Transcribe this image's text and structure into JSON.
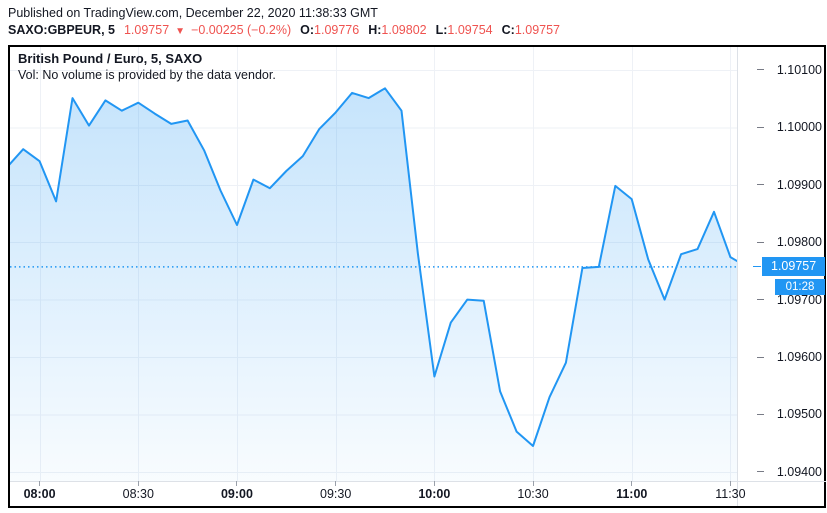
{
  "header": {
    "published": "Published on TradingView.com, December 22, 2020 11:38:33 GMT",
    "symbol": "SAXO:GBPEUR, 5",
    "last_price": "1.09757",
    "direction_icon": "▼",
    "change": "−0.00225 (−0.2%)",
    "ohlc": [
      {
        "label": "O:",
        "value": "1.09776"
      },
      {
        "label": "H:",
        "value": "1.09802"
      },
      {
        "label": "L:",
        "value": "1.09754"
      },
      {
        "label": "C:",
        "value": "1.09757"
      }
    ]
  },
  "legend": {
    "title": "British Pound / Euro, 5, SAXO",
    "volume_note": "Vol: No volume is provided by the data vendor."
  },
  "price_scale": {
    "labels": [
      "1.10100",
      "1.10000",
      "1.09900",
      "1.09800",
      "1.09700",
      "1.09600",
      "1.09500",
      "1.09400"
    ],
    "current": "1.09757",
    "countdown": "01:28"
  },
  "time_scale": {
    "ticks": [
      {
        "label": "08:00",
        "bold": true
      },
      {
        "label": "08:30",
        "bold": false
      },
      {
        "label": "09:00",
        "bold": true
      },
      {
        "label": "09:30",
        "bold": false
      },
      {
        "label": "10:00",
        "bold": true
      },
      {
        "label": "10:30",
        "bold": false
      },
      {
        "label": "11:00",
        "bold": true
      },
      {
        "label": "11:30",
        "bold": false
      }
    ]
  },
  "colors": {
    "line": "#2196f3",
    "area_top": "rgba(33,150,243,0.26)",
    "area_bottom": "rgba(33,150,243,0.03)",
    "grid": "#eef1f6",
    "text": "#131722",
    "red": "#ef5350",
    "label_bg": "#2196f3"
  },
  "chart_data": {
    "type": "area",
    "title": "British Pound / Euro, 5, SAXO",
    "symbol": "SAXO:GBPEUR",
    "interval_minutes": 5,
    "x": [
      "07:50",
      "07:55",
      "08:00",
      "08:05",
      "08:10",
      "08:15",
      "08:20",
      "08:25",
      "08:30",
      "08:35",
      "08:40",
      "08:45",
      "08:50",
      "08:55",
      "09:00",
      "09:05",
      "09:10",
      "09:15",
      "09:20",
      "09:25",
      "09:30",
      "09:35",
      "09:40",
      "09:45",
      "09:50",
      "09:55",
      "10:00",
      "10:05",
      "10:10",
      "10:15",
      "10:20",
      "10:25",
      "10:30",
      "10:35",
      "10:40",
      "10:45",
      "10:50",
      "10:55",
      "11:00",
      "11:05",
      "11:10",
      "11:15",
      "11:20",
      "11:25",
      "11:30",
      "11:35"
    ],
    "y": [
      1.0993,
      1.09962,
      1.09941,
      1.09871,
      1.10051,
      1.10003,
      1.10047,
      1.10029,
      1.10043,
      1.10024,
      1.10006,
      1.10012,
      1.0996,
      1.0989,
      1.0983,
      1.09909,
      1.09894,
      1.09924,
      1.0995,
      1.09997,
      1.10026,
      1.1006,
      1.10051,
      1.10068,
      1.10029,
      1.0978,
      1.09566,
      1.0966,
      1.097,
      1.09698,
      1.0954,
      1.0947,
      1.09445,
      1.0953,
      1.0959,
      1.09755,
      1.09757,
      1.09898,
      1.09875,
      1.0977,
      1.097,
      1.09779,
      1.09788,
      1.09853,
      1.09774,
      1.09757
    ],
    "ylim": [
      1.09384,
      1.1014
    ],
    "xlim": [
      "07:51",
      "11:32"
    ],
    "ytick_values": [
      1.101,
      1.1,
      1.099,
      1.098,
      1.097,
      1.096,
      1.095,
      1.094
    ],
    "xticks": [
      "08:00",
      "08:30",
      "09:00",
      "09:30",
      "10:00",
      "10:30",
      "11:00",
      "11:30"
    ],
    "current_price": 1.09757,
    "grid": true,
    "legend_position": "top-left",
    "ylabel": "",
    "xlabel": ""
  }
}
